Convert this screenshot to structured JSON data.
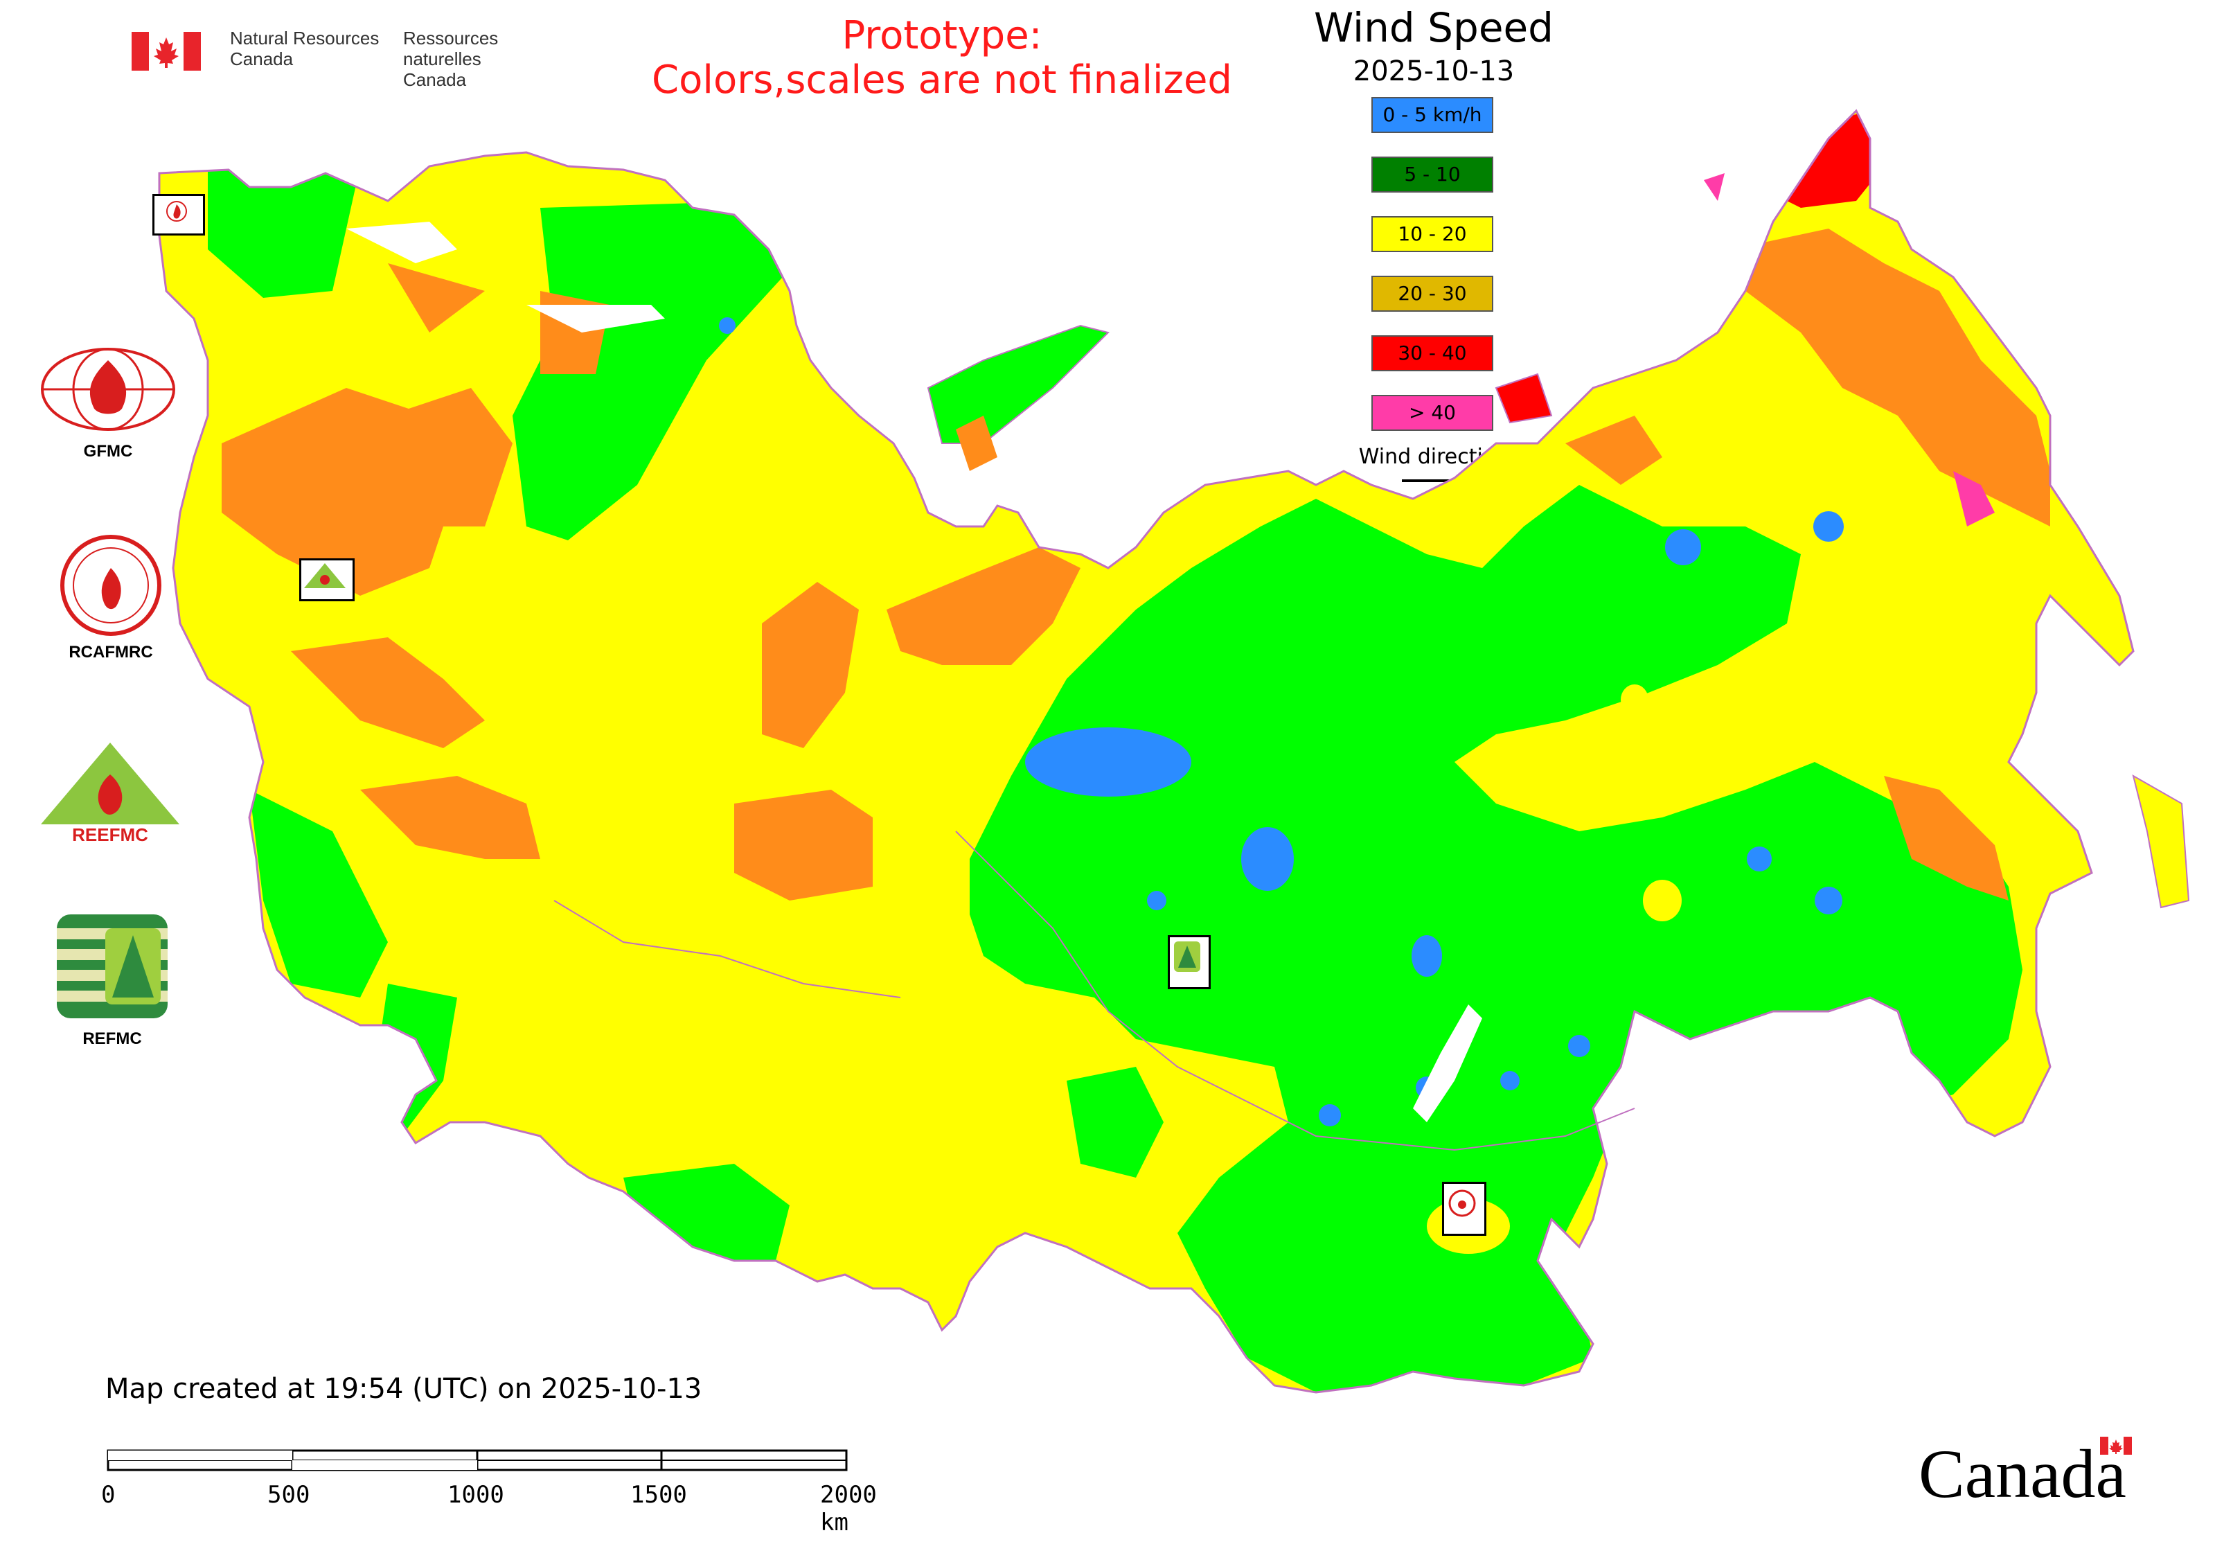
{
  "header": {
    "gov_en_line1": "Natural Resources",
    "gov_en_line2": "Canada",
    "gov_fr_line1": "Ressources naturelles",
    "gov_fr_line2": "Canada",
    "prototype_line1": "Prototype:",
    "prototype_line2": "Colors,scales are not finalized"
  },
  "legend": {
    "title": "Wind Speed",
    "date": "2025-10-13",
    "items": [
      {
        "label": "0 - 5 km/h",
        "color": "#2b8cff"
      },
      {
        "label": "5 - 10",
        "color": "#008000"
      },
      {
        "label": "10 - 20",
        "color": "#ffff00"
      },
      {
        "label": "20 - 30",
        "color": "#e0b800"
      },
      {
        "label": "30 - 40",
        "color": "#ff0000"
      },
      {
        "label": "> 40",
        "color": "#ff3ca8"
      }
    ],
    "wind_direction_label": "Wind direction"
  },
  "map_colors": {
    "calm": "#2b8cff",
    "light": "#00ff00",
    "moderate": "#ffff00",
    "fresh": "#ff8c1a",
    "strong": "#ff0000",
    "gale": "#ff3ca8",
    "water": "#ffffff",
    "border": "#c070c0"
  },
  "organizations": {
    "gfmc": "GFMC",
    "rcafmrc": "RCAFMRC",
    "reefmc": "REEFMC",
    "refmc": "REFMC"
  },
  "footer": {
    "created_text": "Map created at 19:54 (UTC) on 2025-10-13",
    "scale_ticks": [
      "0",
      "500",
      "1000",
      "1500",
      "2000 km"
    ],
    "canada_wordmark": "Canada"
  }
}
